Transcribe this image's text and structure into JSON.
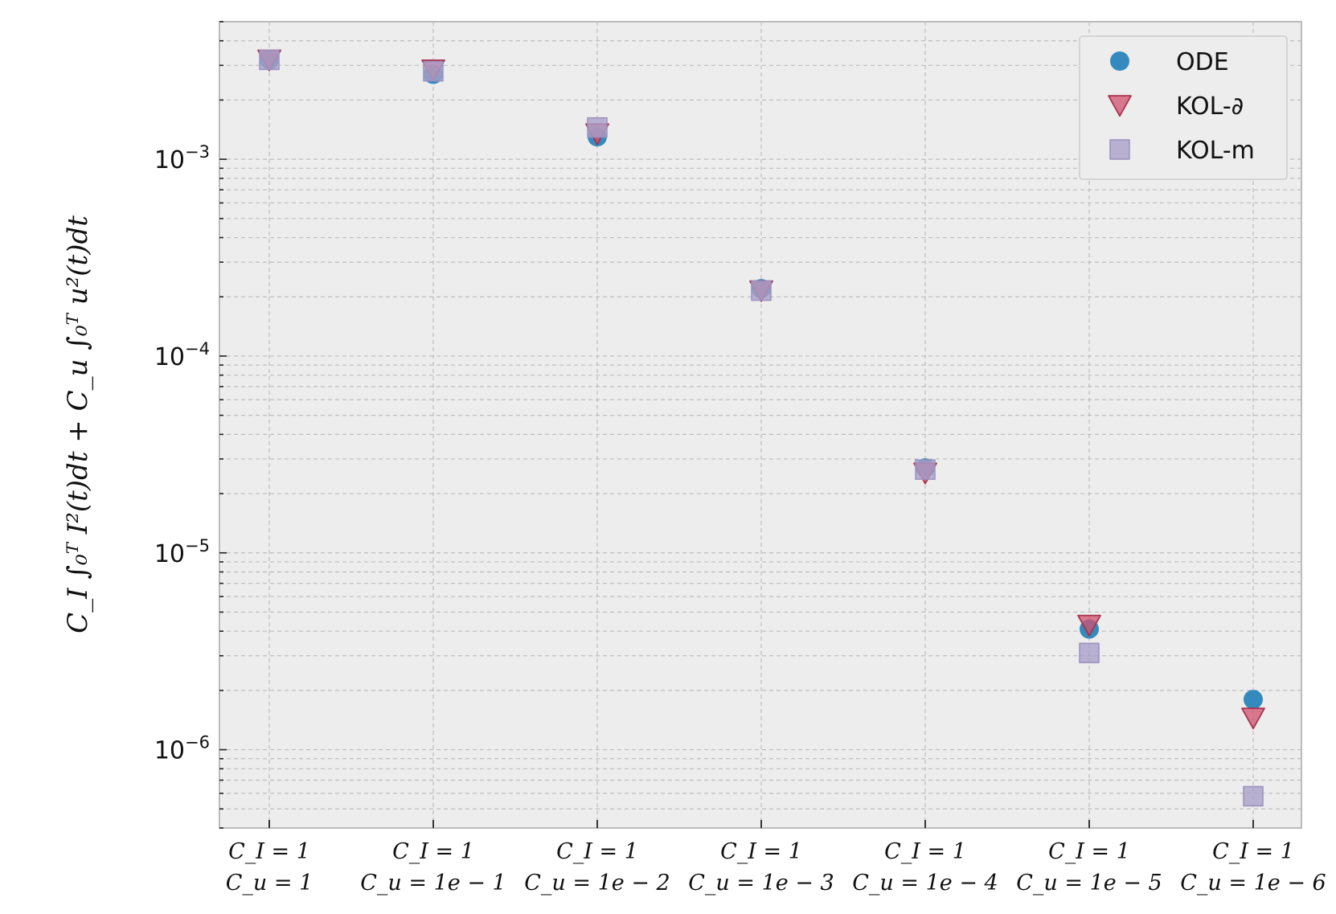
{
  "chart_data": {
    "type": "scatter",
    "title": "",
    "xlabel": "",
    "ylabel": "C_I ∫₀ᵀ I²(t)dt + C_u ∫₀ᵀ u²(t)dt",
    "yscale": "log",
    "ylim": [
      4e-07,
      0.005
    ],
    "yticks": [
      {
        "base": "10",
        "exp": "−3",
        "value": 0.001
      },
      {
        "base": "10",
        "exp": "−4",
        "value": 0.0001
      },
      {
        "base": "10",
        "exp": "−5",
        "value": 1e-05
      },
      {
        "base": "10",
        "exp": "−6",
        "value": 1e-06
      }
    ],
    "categories": [
      {
        "line1": "C_I = 1",
        "line2": "C_u = 1"
      },
      {
        "line1": "C_I = 1",
        "line2": "C_u = 1e − 1"
      },
      {
        "line1": "C_I = 1",
        "line2": "C_u = 1e − 2"
      },
      {
        "line1": "C_I = 1",
        "line2": "C_u = 1e − 3"
      },
      {
        "line1": "C_I = 1",
        "line2": "C_u = 1e − 4"
      },
      {
        "line1": "C_I = 1",
        "line2": "C_u = 1e − 5"
      },
      {
        "line1": "C_I = 1",
        "line2": "C_u = 1e − 6"
      }
    ],
    "series": [
      {
        "name": "ODE",
        "marker": "circle",
        "color": "#348ABD",
        "values": [
          0.0032,
          0.0027,
          0.0013,
          0.00022,
          2.7e-05,
          4.1e-06,
          1.8e-06
        ]
      },
      {
        "name": "KOL-∂",
        "marker": "triangle-down",
        "color": "#D0506E",
        "values": [
          0.0032,
          0.00285,
          0.00135,
          0.000215,
          2.55e-05,
          4.3e-06,
          1.45e-06
        ]
      },
      {
        "name": "KOL-m",
        "marker": "square",
        "color": "#A9A0C8",
        "values": [
          0.0032,
          0.0028,
          0.00145,
          0.000215,
          2.65e-05,
          3.1e-06,
          5.8e-07
        ]
      }
    ],
    "grid": true,
    "legend": "top-right",
    "background": "#EDEDED"
  }
}
